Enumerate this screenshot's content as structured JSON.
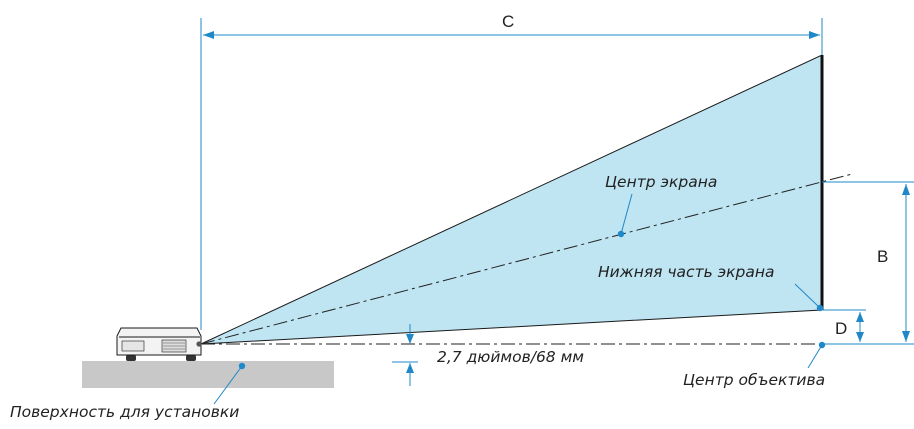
{
  "dimensions": {
    "c": "C",
    "b": "B",
    "d": "D"
  },
  "labels": {
    "screen_center": "Центр экрана",
    "screen_bottom": "Нижняя часть экрана",
    "lens_offset": "2,7 дюймов/68 мм",
    "lens_center": "Центр объектива",
    "mounting_surface": "Поверхность для установки"
  },
  "colors": {
    "projection_fill": "#bfe4f2",
    "dimension_line": "#1e88c8",
    "screen": "#111111",
    "surface": "#c8c8c8",
    "text": "#222222"
  }
}
